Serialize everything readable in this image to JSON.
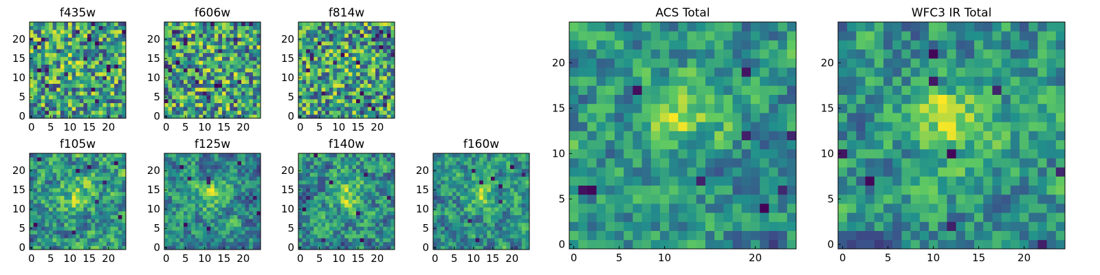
{
  "figure": {
    "background": "#ffffff"
  },
  "colormap": {
    "name": "viridis",
    "stops": [
      "#440154",
      "#3b528b",
      "#21918c",
      "#5ec962",
      "#fde725"
    ]
  },
  "chart_data": [
    {
      "type": "heatmap",
      "title": "f435w",
      "xlabel": "",
      "ylabel": "",
      "xlim": [
        0,
        24
      ],
      "ylim": [
        0,
        24
      ],
      "xticks": [
        0,
        5,
        10,
        15,
        20
      ],
      "yticks": [
        0,
        5,
        10,
        15,
        20
      ],
      "grid": false,
      "size": 25,
      "texture": "noisy",
      "seed": 11
    },
    {
      "type": "heatmap",
      "title": "f606w",
      "xlabel": "",
      "ylabel": "",
      "xlim": [
        0,
        24
      ],
      "ylim": [
        0,
        24
      ],
      "xticks": [
        0,
        5,
        10,
        15,
        20
      ],
      "yticks": [
        0,
        5,
        10,
        15,
        20
      ],
      "grid": false,
      "size": 25,
      "texture": "noisy",
      "seed": 23
    },
    {
      "type": "heatmap",
      "title": "f814w",
      "xlabel": "",
      "ylabel": "",
      "xlim": [
        0,
        24
      ],
      "ylim": [
        0,
        24
      ],
      "xticks": [
        0,
        5,
        10,
        15,
        20
      ],
      "yticks": [
        0,
        5,
        10,
        15,
        20
      ],
      "grid": false,
      "size": 25,
      "texture": "noisy",
      "seed": 37
    },
    {
      "type": "heatmap",
      "title": "f105w",
      "xlabel": "",
      "ylabel": "",
      "xlim": [
        0,
        24
      ],
      "ylim": [
        0,
        24
      ],
      "xticks": [
        0,
        5,
        10,
        15,
        20
      ],
      "yticks": [
        0,
        5,
        10,
        15,
        20
      ],
      "grid": false,
      "size": 25,
      "texture": "smooth",
      "seed": 41
    },
    {
      "type": "heatmap",
      "title": "f125w",
      "xlabel": "",
      "ylabel": "",
      "xlim": [
        0,
        24
      ],
      "ylim": [
        0,
        24
      ],
      "xticks": [
        0,
        5,
        10,
        15,
        20
      ],
      "yticks": [
        0,
        5,
        10,
        15,
        20
      ],
      "grid": false,
      "size": 25,
      "texture": "smooth",
      "seed": 53
    },
    {
      "type": "heatmap",
      "title": "f140w",
      "xlabel": "",
      "ylabel": "",
      "xlim": [
        0,
        24
      ],
      "ylim": [
        0,
        24
      ],
      "xticks": [
        0,
        5,
        10,
        15,
        20
      ],
      "yticks": [
        0,
        5,
        10,
        15,
        20
      ],
      "grid": false,
      "size": 25,
      "texture": "smooth",
      "seed": 67
    },
    {
      "type": "heatmap",
      "title": "f160w",
      "xlabel": "",
      "ylabel": "",
      "xlim": [
        0,
        24
      ],
      "ylim": [
        0,
        24
      ],
      "xticks": [
        0,
        5,
        10,
        15,
        20
      ],
      "yticks": [
        0,
        5,
        10,
        15,
        20
      ],
      "grid": false,
      "size": 25,
      "texture": "smooth",
      "seed": 79
    },
    {
      "type": "heatmap",
      "title": "ACS Total",
      "xlabel": "",
      "ylabel": "",
      "xlim": [
        0,
        24
      ],
      "ylim": [
        0,
        24
      ],
      "xticks": [
        0,
        5,
        10,
        20
      ],
      "yticks": [
        0,
        5,
        10,
        15,
        20
      ],
      "grid": false,
      "size": 25,
      "texture": "medium",
      "seed": 83
    },
    {
      "type": "heatmap",
      "title": "WFC3 IR Total",
      "xlabel": "",
      "ylabel": "",
      "xlim": [
        0,
        24
      ],
      "ylim": [
        0,
        24
      ],
      "xticks": [
        0,
        5,
        10,
        15,
        20
      ],
      "yticks": [
        0,
        5,
        10,
        15,
        20
      ],
      "grid": false,
      "size": 25,
      "texture": "medium",
      "seed": 97
    }
  ]
}
